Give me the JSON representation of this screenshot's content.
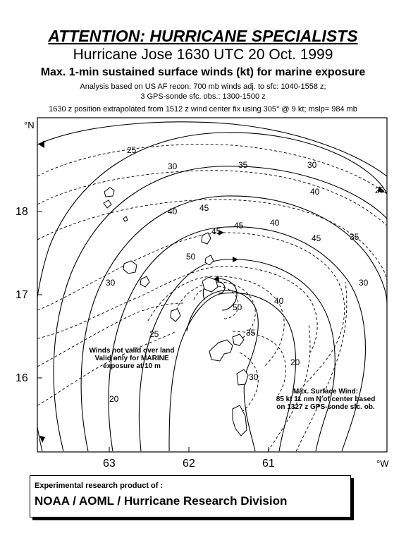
{
  "header": {
    "attention": "ATTENTION: HURRICANE SPECIALISTS",
    "title": "Hurricane Jose  1630 UTC 20 Oct. 1999",
    "subtitle": "Max. 1-min sustained surface winds (kt) for marine exposure",
    "analysis_line1": "Analysis based on US AF recon. 700 mb winds adj. to sfc: 1040-1558 z;",
    "analysis_line2": "3 GPS-sonde sfc. obs.: 1300-1500 z",
    "analysis_line3": "1630 z position extrapolated from  1512 z wind center fix using  305° @ 9 kt; mslp= 984 mb"
  },
  "map": {
    "lat_unit": "°N",
    "lon_unit": "°W",
    "lat_ticks": [
      "18",
      "17",
      "16"
    ],
    "lon_ticks": [
      "63",
      "62",
      "61"
    ],
    "contour_labels": [
      "25",
      "30",
      "35",
      "30",
      "25",
      "40",
      "45",
      "40",
      "45",
      "50",
      "45",
      "40",
      "35",
      "30",
      "30",
      "25",
      "20",
      "35",
      "30",
      "40",
      "20",
      "45",
      "50"
    ],
    "annotations": {
      "land_note": [
        "Winds not valid over land",
        "Valid only for MARINE",
        "exposure at 10 m"
      ],
      "max_wind": [
        "Max. Surface Wind:",
        "85 kt  11 nm N of center based",
        "on 1327 z GPS-sonde sfc. ob."
      ]
    }
  },
  "footer": {
    "line1": "Experimental research product of :",
    "line2": "NOAA / AOML / Hurricane Research Division"
  }
}
